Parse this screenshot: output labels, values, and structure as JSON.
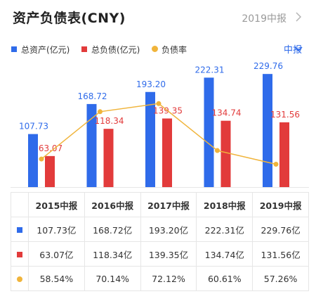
{
  "header": {
    "title": "资产负债表(CNY)",
    "period": "2019中报"
  },
  "legend": {
    "items": [
      {
        "label": "总资产(亿元)",
        "color": "#2f6bea",
        "shape": "square"
      },
      {
        "label": "总负债(亿元)",
        "color": "#e23b3b",
        "shape": "square"
      },
      {
        "label": "负债率",
        "color": "#f0b43b",
        "shape": "circle"
      }
    ]
  },
  "period_select": "中报",
  "chart_data": {
    "type": "bar",
    "categories": [
      "2015中报",
      "2016中报",
      "2017中报",
      "2018中报",
      "2019中报"
    ],
    "series": [
      {
        "name": "总资产(亿元)",
        "type": "bar",
        "color": "#2f6bea",
        "values": [
          107.73,
          168.72,
          193.2,
          222.31,
          229.76
        ],
        "labels": [
          "107.73",
          "168.72",
          "193.20",
          "222.31",
          "229.76"
        ]
      },
      {
        "name": "总负债(亿元)",
        "type": "bar",
        "color": "#e23b3b",
        "values": [
          63.07,
          118.34,
          139.35,
          134.74,
          131.56
        ],
        "labels": [
          "63.07",
          "118.34",
          "139.35",
          "134.74",
          "131.56"
        ]
      },
      {
        "name": "负债率",
        "type": "line",
        "color": "#f0b43b",
        "values": [
          58.54,
          70.14,
          72.12,
          60.61,
          57.26
        ]
      }
    ],
    "grid": false,
    "legend_position": "top-left"
  },
  "table": {
    "headers": [
      "",
      "2015中报",
      "2016中报",
      "2017中报",
      "2018中报",
      "2019中报"
    ],
    "rows": [
      {
        "marker": "square",
        "color": "#2f6bea",
        "cells": [
          "107.73亿",
          "168.72亿",
          "193.20亿",
          "222.31亿",
          "229.76亿"
        ]
      },
      {
        "marker": "square",
        "color": "#e23b3b",
        "cells": [
          "63.07亿",
          "118.34亿",
          "139.35亿",
          "134.74亿",
          "131.56亿"
        ]
      },
      {
        "marker": "circle",
        "color": "#f0b43b",
        "cells": [
          "58.54%",
          "70.14%",
          "72.12%",
          "60.61%",
          "57.26%"
        ]
      }
    ]
  }
}
